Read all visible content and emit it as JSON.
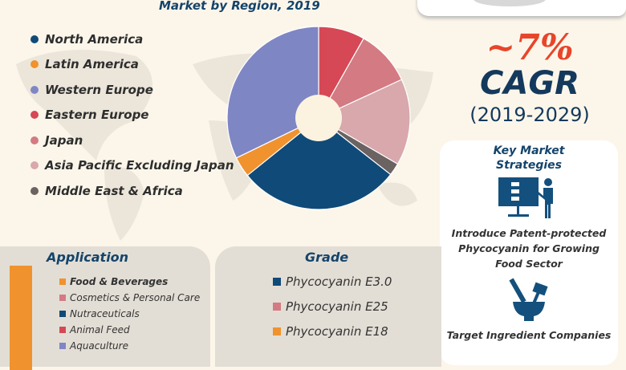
{
  "chart_data": {
    "type": "pie",
    "title": "Market by Region, 2019",
    "legend_position": "left",
    "categories": [
      "North America",
      "Latin America",
      "Western Europe",
      "Eastern Europe",
      "Japan",
      "Asia Pacific Excluding Japan",
      "Middle East & Africa"
    ],
    "colors": [
      "#104a78",
      "#f0922e",
      "#7f86c4",
      "#d64855",
      "#d47a82",
      "#d8a8ac",
      "#6b6262"
    ],
    "values_approx_percent": [
      28.6,
      3.6,
      32.2,
      8.2,
      9.9,
      15.3,
      2.2
    ],
    "order_clockwise_from_top": [
      "Eastern Europe",
      "Japan",
      "Asia Pacific Excluding Japan",
      "Middle East & Africa",
      "North America",
      "Latin America",
      "Western Europe"
    ]
  },
  "cagr": {
    "value": "~7%",
    "label": "CAGR",
    "period": "(2019-2029)"
  },
  "strategies": {
    "title1": "Key Market",
    "title2": "Strategies",
    "items": [
      "Introduce Patent-protected Phycocyanin for Growing Food Sector",
      "Target Ingredient Companies"
    ]
  },
  "application": {
    "title": "Application",
    "bar_color": "#f0922e",
    "items": [
      {
        "label": "Food & Beverages",
        "color": "#f0922e"
      },
      {
        "label": "Cosmetics & Personal Care",
        "color": "#d47a82"
      },
      {
        "label": "Nutraceuticals",
        "color": "#104a78"
      },
      {
        "label": "Animal Feed",
        "color": "#d64855"
      },
      {
        "label": "Aquaculture",
        "color": "#7f86c4"
      }
    ]
  },
  "grade": {
    "title": "Grade",
    "items": [
      {
        "label": "Phycocyanin E3.0",
        "color": "#104a78"
      },
      {
        "label": "Phycocyanin E25",
        "color": "#d47a82"
      },
      {
        "label": "Phycocyanin E18",
        "color": "#f0922e"
      }
    ]
  }
}
